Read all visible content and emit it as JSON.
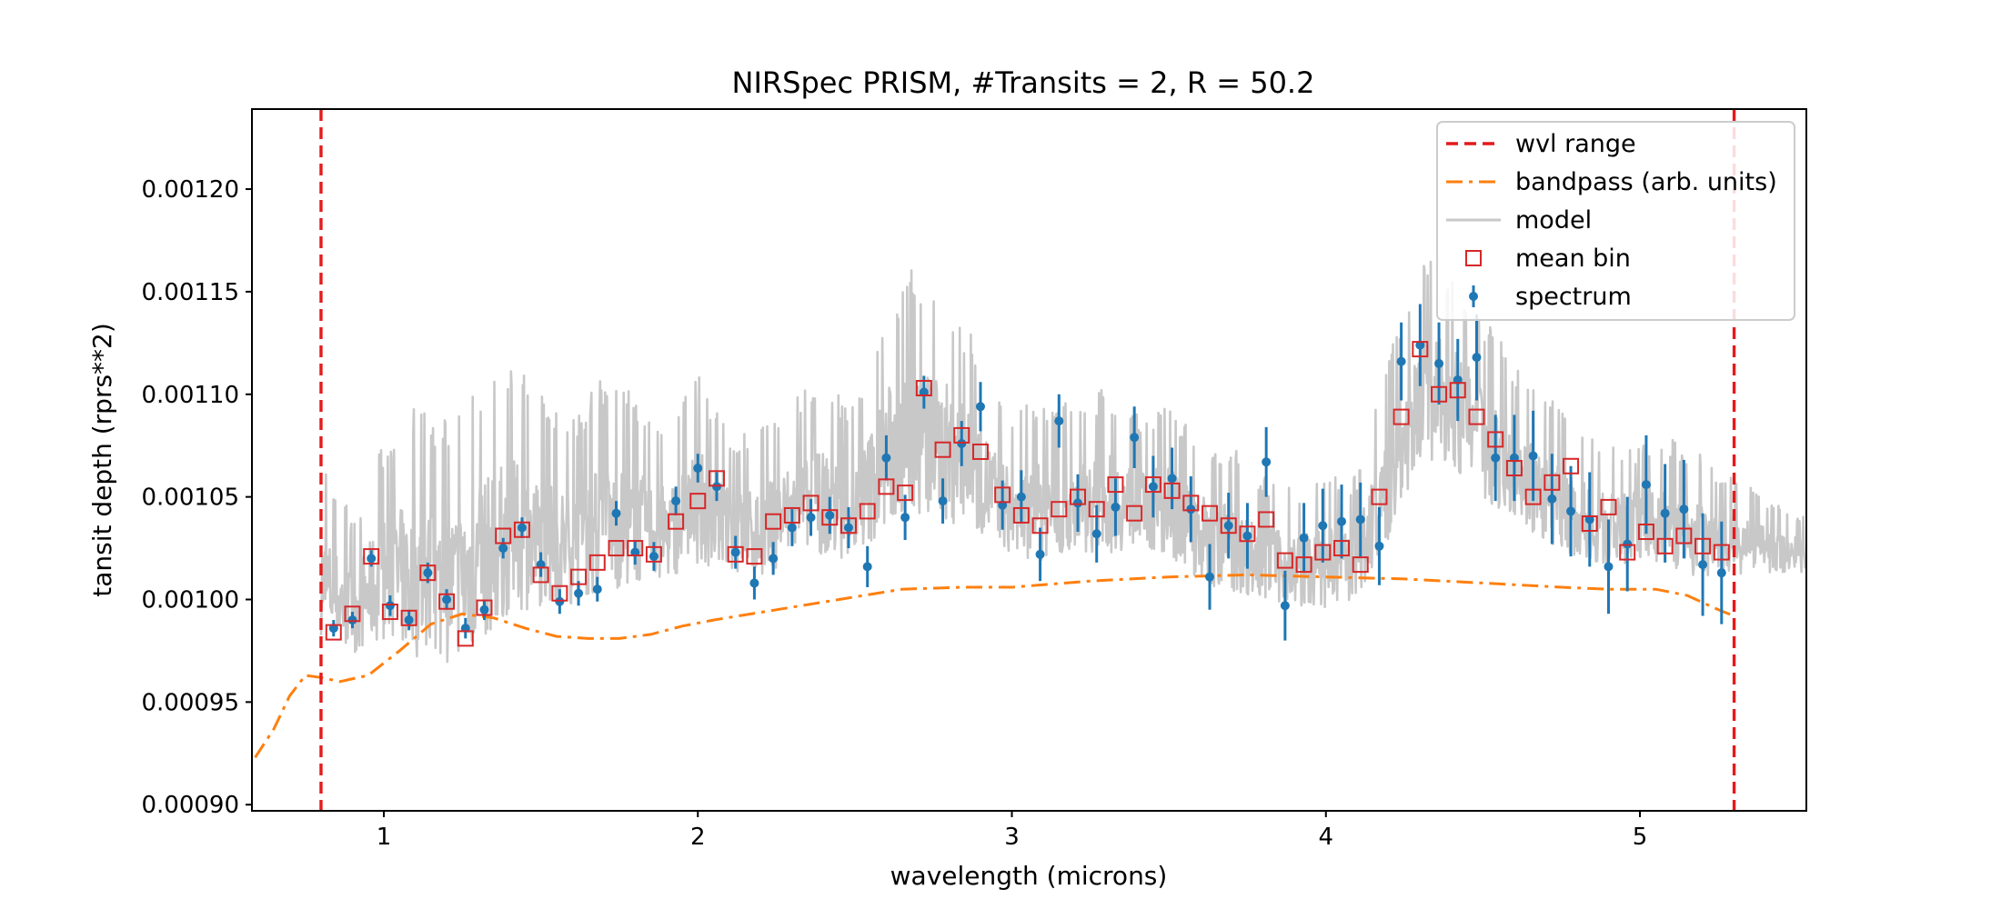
{
  "chart_data": {
    "type": "scatter",
    "title": "NIRSpec PRISM, #Transits = 2, R = 50.2",
    "xlabel": "wavelength (microns)",
    "ylabel": "tansit depth (rprs**2)",
    "xlim": [
      0.58,
      5.53
    ],
    "ylim": [
      0.000897,
      0.001239
    ],
    "xticks": [
      1,
      2,
      3,
      4,
      5
    ],
    "xtick_labels": [
      "1",
      "2",
      "3",
      "4",
      "5"
    ],
    "yticks": [
      0.0009,
      0.00095,
      0.001,
      0.00105,
      0.0011,
      0.00115,
      0.0012
    ],
    "ytick_labels": [
      "0.00090",
      "0.00095",
      "0.00100",
      "0.00105",
      "0.00110",
      "0.00115",
      "0.00120"
    ],
    "grid": false,
    "legend_position": "top-right",
    "colors": {
      "wvl_range": "#e41a1c",
      "bandpass": "#ff7f0e",
      "model": "#c8c8c8",
      "mean_bin": "#d62728",
      "spectrum": "#1f77b4"
    },
    "legend": [
      {
        "label": "wvl range",
        "key": "wvl_range",
        "style": "dashed-line"
      },
      {
        "label": "bandpass (arb. units)",
        "key": "bandpass",
        "style": "dashdot-line"
      },
      {
        "label": "model",
        "key": "model",
        "style": "solid-line"
      },
      {
        "label": "mean bin",
        "key": "mean_bin",
        "style": "open-square"
      },
      {
        "label": "spectrum",
        "key": "spectrum",
        "style": "errorbar-dot"
      }
    ],
    "wvl_range": [
      0.8,
      5.3
    ],
    "bandpass": {
      "x": [
        0.59,
        0.65,
        0.7,
        0.75,
        0.8,
        0.86,
        0.95,
        1.05,
        1.15,
        1.25,
        1.35,
        1.45,
        1.55,
        1.65,
        1.75,
        1.85,
        1.95,
        2.05,
        2.25,
        2.45,
        2.65,
        2.85,
        3.0,
        3.25,
        3.5,
        3.75,
        4.0,
        4.25,
        4.5,
        4.75,
        4.9,
        5.05,
        5.15,
        5.25,
        5.3
      ],
      "y": [
        0.000923,
        0.000937,
        0.000953,
        0.000963,
        0.000962,
        0.00096,
        0.000963,
        0.000975,
        0.000988,
        0.000993,
        0.000991,
        0.000986,
        0.000982,
        0.000981,
        0.000981,
        0.000983,
        0.000987,
        0.00099,
        0.000995,
        0.001,
        0.001005,
        0.001006,
        0.001006,
        0.001009,
        0.001011,
        0.001012,
        0.001011,
        0.00101,
        0.001008,
        0.001006,
        0.001005,
        0.001005,
        0.001002,
        0.000995,
        0.000992
      ]
    },
    "model": {
      "x_min": 0.8,
      "x_max": 5.53,
      "envelope_x": [
        0.8,
        0.9,
        1.0,
        1.1,
        1.2,
        1.3,
        1.4,
        1.5,
        1.6,
        1.7,
        1.8,
        1.9,
        2.0,
        2.1,
        2.2,
        2.3,
        2.4,
        2.5,
        2.6,
        2.7,
        2.8,
        2.9,
        3.0,
        3.1,
        3.2,
        3.3,
        3.4,
        3.5,
        3.6,
        3.7,
        3.8,
        3.9,
        4.0,
        4.1,
        4.2,
        4.3,
        4.4,
        4.5,
        4.6,
        4.7,
        4.8,
        4.9,
        5.0,
        5.1,
        5.2,
        5.3,
        5.4,
        5.53
      ],
      "envelope_low": [
        0.000975,
        0.000968,
        0.000972,
        0.00096,
        0.000958,
        0.000966,
        0.000982,
        0.000988,
        0.00099,
        0.000994,
        0.000998,
        0.001003,
        0.00101,
        0.001008,
        0.001002,
        0.001012,
        0.001015,
        0.001012,
        0.001025,
        0.00103,
        0.001028,
        0.001025,
        0.001015,
        0.00101,
        0.001018,
        0.001015,
        0.00102,
        0.001015,
        0.001002,
        0.000998,
        0.000995,
        0.000992,
        0.00099,
        0.000995,
        0.00102,
        0.00106,
        0.001058,
        0.00104,
        0.001035,
        0.00102,
        0.001015,
        0.00101,
        0.001015,
        0.00101,
        0.001005,
        0.001008,
        0.00101,
        0.00101
      ],
      "envelope_high": [
        0.00107,
        0.00104,
        0.00108,
        0.0011,
        0.00109,
        0.00111,
        0.00112,
        0.0011,
        0.00109,
        0.00111,
        0.0011,
        0.001085,
        0.00111,
        0.00108,
        0.001085,
        0.0011,
        0.001105,
        0.001095,
        0.00115,
        0.001165,
        0.00115,
        0.00112,
        0.00109,
        0.0011,
        0.001095,
        0.001105,
        0.00109,
        0.001095,
        0.00108,
        0.001075,
        0.00106,
        0.001055,
        0.00106,
        0.00106,
        0.00112,
        0.00117,
        0.001165,
        0.00114,
        0.001115,
        0.0011,
        0.001085,
        0.001075,
        0.001075,
        0.00108,
        0.00107,
        0.00106,
        0.00105,
        0.00104
      ]
    },
    "mean_bin": {
      "x": [
        0.84,
        0.9,
        0.96,
        1.02,
        1.08,
        1.14,
        1.2,
        1.26,
        1.32,
        1.38,
        1.44,
        1.5,
        1.56,
        1.62,
        1.68,
        1.74,
        1.8,
        1.86,
        1.93,
        2.0,
        2.06,
        2.12,
        2.18,
        2.24,
        2.3,
        2.36,
        2.42,
        2.48,
        2.54,
        2.6,
        2.66,
        2.72,
        2.78,
        2.84,
        2.9,
        2.97,
        3.03,
        3.09,
        3.15,
        3.21,
        3.27,
        3.33,
        3.39,
        3.45,
        3.51,
        3.57,
        3.63,
        3.69,
        3.75,
        3.81,
        3.87,
        3.93,
        3.99,
        4.05,
        4.11,
        4.17,
        4.24,
        4.3,
        4.36,
        4.42,
        4.48,
        4.54,
        4.6,
        4.66,
        4.72,
        4.78,
        4.84,
        4.9,
        4.96,
        5.02,
        5.08,
        5.14,
        5.2,
        5.26
      ],
      "y": [
        0.000984,
        0.000993,
        0.001021,
        0.000994,
        0.000991,
        0.001013,
        0.000999,
        0.000981,
        0.000996,
        0.001031,
        0.001034,
        0.001012,
        0.001003,
        0.001011,
        0.001018,
        0.001025,
        0.001025,
        0.001022,
        0.001038,
        0.001048,
        0.001059,
        0.001022,
        0.001021,
        0.001038,
        0.001041,
        0.001047,
        0.00104,
        0.001036,
        0.001043,
        0.001055,
        0.001052,
        0.001103,
        0.001073,
        0.00108,
        0.001072,
        0.001051,
        0.001041,
        0.001036,
        0.001044,
        0.00105,
        0.001044,
        0.001056,
        0.001042,
        0.001056,
        0.001053,
        0.001047,
        0.001042,
        0.001036,
        0.001032,
        0.001039,
        0.001019,
        0.001017,
        0.001023,
        0.001025,
        0.001017,
        0.00105,
        0.001089,
        0.001122,
        0.0011,
        0.001102,
        0.001089,
        0.001078,
        0.001064,
        0.00105,
        0.001057,
        0.001065,
        0.001037,
        0.001045,
        0.001023,
        0.001033,
        0.001026,
        0.001031,
        0.001026,
        0.001023
      ]
    },
    "spectrum": {
      "x": [
        0.84,
        0.9,
        0.96,
        1.02,
        1.08,
        1.14,
        1.2,
        1.26,
        1.32,
        1.38,
        1.44,
        1.5,
        1.56,
        1.62,
        1.68,
        1.74,
        1.8,
        1.86,
        1.93,
        2.0,
        2.06,
        2.12,
        2.18,
        2.24,
        2.3,
        2.36,
        2.42,
        2.48,
        2.54,
        2.6,
        2.66,
        2.72,
        2.78,
        2.84,
        2.9,
        2.97,
        3.03,
        3.09,
        3.15,
        3.21,
        3.27,
        3.33,
        3.39,
        3.45,
        3.51,
        3.57,
        3.63,
        3.69,
        3.75,
        3.81,
        3.87,
        3.93,
        3.99,
        4.05,
        4.11,
        4.17,
        4.24,
        4.3,
        4.36,
        4.42,
        4.48,
        4.54,
        4.6,
        4.66,
        4.72,
        4.78,
        4.84,
        4.9,
        4.96,
        5.02,
        5.08,
        5.14,
        5.2,
        5.26
      ],
      "y": [
        0.000986,
        0.00099,
        0.00102,
        0.000997,
        0.00099,
        0.001013,
        0.001,
        0.000986,
        0.000995,
        0.001025,
        0.001035,
        0.001017,
        0.000999,
        0.001003,
        0.001005,
        0.001042,
        0.001023,
        0.001021,
        0.001048,
        0.001064,
        0.001055,
        0.001023,
        0.001008,
        0.00102,
        0.001035,
        0.00104,
        0.001041,
        0.001035,
        0.001016,
        0.001069,
        0.00104,
        0.001101,
        0.001048,
        0.001076,
        0.001094,
        0.001046,
        0.00105,
        0.001022,
        0.001087,
        0.001047,
        0.001032,
        0.001045,
        0.001079,
        0.001055,
        0.001059,
        0.001044,
        0.001011,
        0.001036,
        0.001031,
        0.001067,
        0.000997,
        0.00103,
        0.001036,
        0.001038,
        0.001039,
        0.001026,
        0.001116,
        0.001124,
        0.001115,
        0.001107,
        0.001118,
        0.001069,
        0.001069,
        0.00107,
        0.001049,
        0.001043,
        0.001039,
        0.001016,
        0.001027,
        0.001056,
        0.001042,
        0.001044,
        0.001017,
        0.001013
      ],
      "err": [
        4e-06,
        4e-06,
        4e-06,
        5e-06,
        5e-06,
        5e-06,
        5e-06,
        5e-06,
        5e-06,
        5e-06,
        5e-06,
        6e-06,
        6e-06,
        6e-06,
        6e-06,
        6e-06,
        6e-06,
        7e-06,
        7e-06,
        7e-06,
        7e-06,
        8e-06,
        8e-06,
        8e-06,
        9e-06,
        9e-06,
        9e-06,
        1e-05,
        1e-05,
        1.1e-05,
        1.1e-05,
        8e-06,
        1.1e-05,
        1.1e-05,
        1.2e-05,
        1.2e-05,
        1.3e-05,
        1.3e-05,
        1.3e-05,
        1.4e-05,
        1.4e-05,
        1.4e-05,
        1.5e-05,
        1.5e-05,
        1.5e-05,
        1.6e-05,
        1.6e-05,
        1.6e-05,
        1.6e-05,
        1.7e-05,
        1.7e-05,
        1.7e-05,
        1.8e-05,
        1.8e-05,
        1.8e-05,
        1.9e-05,
        1.9e-05,
        2e-05,
        2e-05,
        2e-05,
        2.1e-05,
        2.1e-05,
        2.1e-05,
        2.2e-05,
        2.2e-05,
        2.2e-05,
        2.3e-05,
        2.3e-05,
        2.3e-05,
        2.4e-05,
        2.4e-05,
        2.4e-05,
        2.5e-05,
        2.5e-05
      ]
    }
  }
}
